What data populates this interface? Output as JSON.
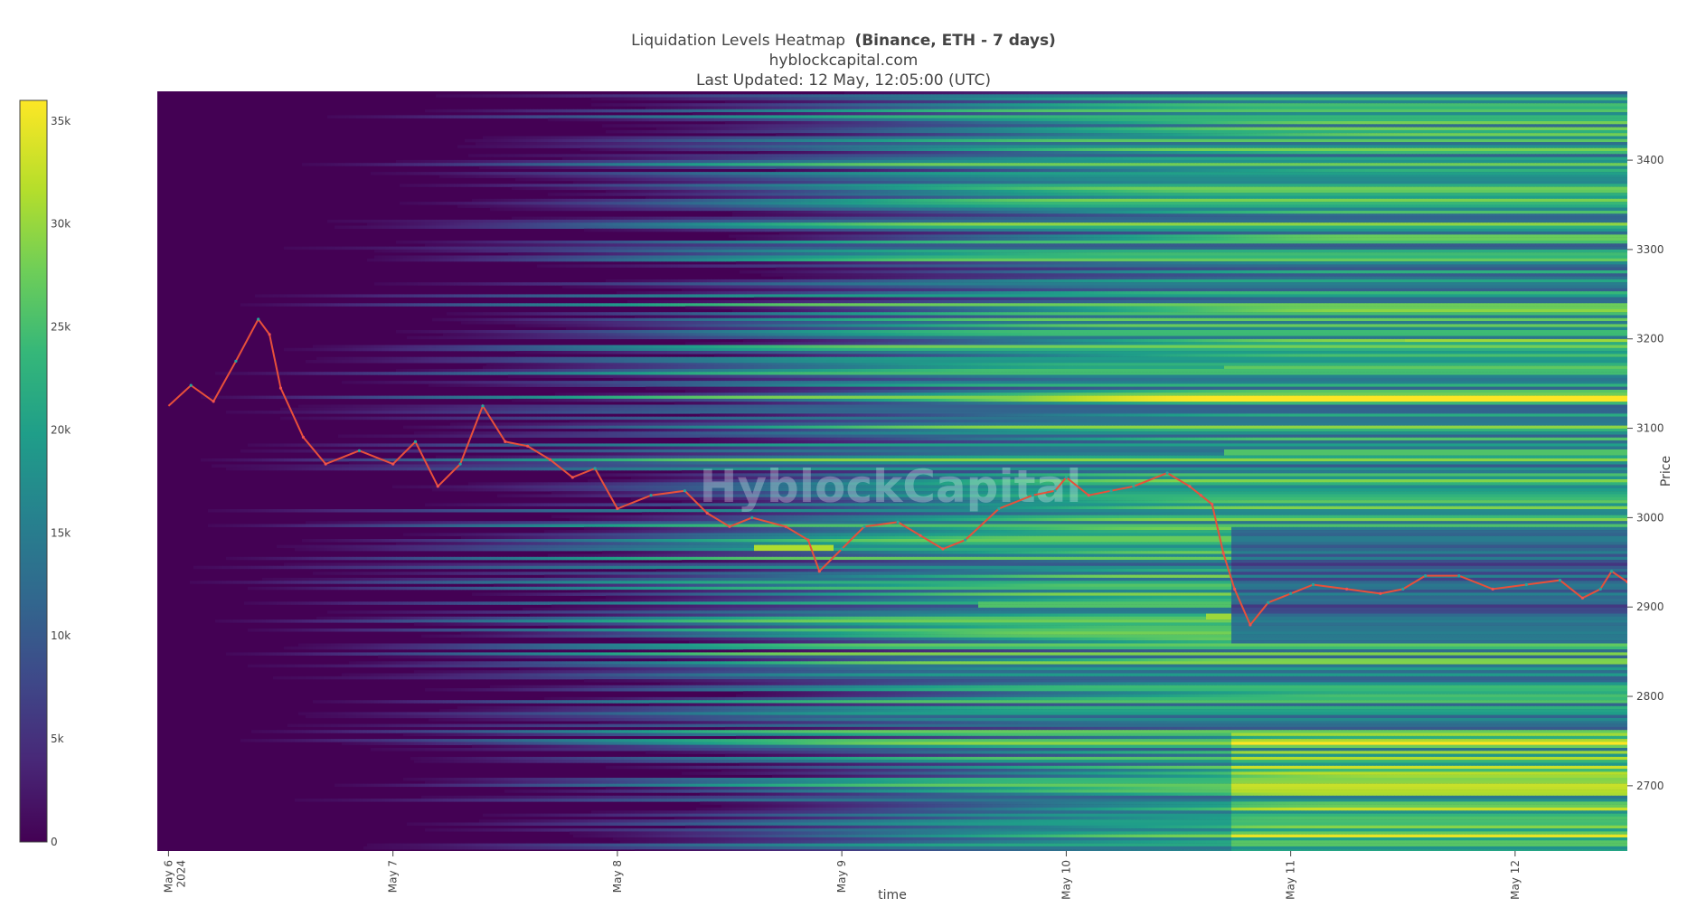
{
  "chart_data": {
    "type": "heatmap",
    "title": "Liquidation Levels Heatmap",
    "title_bold": "(Binance, ETH - 7 days)",
    "subtitle": "hyblockcapital.com",
    "updated": "Last Updated: 12 May, 12:05:00 (UTC)",
    "watermark": "HyblockCapital",
    "xlabel": "time",
    "ylabel": "Price",
    "x_range_days": [
      -0.05,
      6.5
    ],
    "ylim": [
      2627,
      3477
    ],
    "x_ticks": [
      {
        "day": 0,
        "label": "May 6",
        "label2": "2024"
      },
      {
        "day": 1,
        "label": "May 7"
      },
      {
        "day": 2,
        "label": "May 8"
      },
      {
        "day": 3,
        "label": "May 9"
      },
      {
        "day": 4,
        "label": "May 10"
      },
      {
        "day": 5,
        "label": "May 11"
      },
      {
        "day": 6,
        "label": "May 12"
      }
    ],
    "y_ticks": [
      "2700",
      "2800",
      "2900",
      "3000",
      "3100",
      "3200",
      "3300",
      "3400"
    ],
    "colorbar": {
      "min": 0,
      "max": 36000,
      "ticks": [
        "0",
        "5k",
        "10k",
        "15k",
        "20k",
        "25k",
        "30k",
        "35k"
      ],
      "tick_values": [
        0,
        5000,
        10000,
        15000,
        20000,
        25000,
        30000,
        35000
      ],
      "colors": [
        "#440154",
        "#482878",
        "#3e4989",
        "#31688e",
        "#26828e",
        "#1f9e89",
        "#35b779",
        "#6ece58",
        "#b5de2b",
        "#fde725"
      ]
    },
    "price_series": [
      {
        "day": 0.0,
        "price": 3125
      },
      {
        "day": 0.1,
        "price": 3148
      },
      {
        "day": 0.2,
        "price": 3130
      },
      {
        "day": 0.3,
        "price": 3175
      },
      {
        "day": 0.4,
        "price": 3222
      },
      {
        "day": 0.45,
        "price": 3205
      },
      {
        "day": 0.5,
        "price": 3145
      },
      {
        "day": 0.6,
        "price": 3090
      },
      {
        "day": 0.7,
        "price": 3060
      },
      {
        "day": 0.85,
        "price": 3075
      },
      {
        "day": 1.0,
        "price": 3060
      },
      {
        "day": 1.1,
        "price": 3085
      },
      {
        "day": 1.2,
        "price": 3035
      },
      {
        "day": 1.3,
        "price": 3060
      },
      {
        "day": 1.4,
        "price": 3125
      },
      {
        "day": 1.5,
        "price": 3085
      },
      {
        "day": 1.6,
        "price": 3080
      },
      {
        "day": 1.7,
        "price": 3065
      },
      {
        "day": 1.8,
        "price": 3045
      },
      {
        "day": 1.9,
        "price": 3055
      },
      {
        "day": 2.0,
        "price": 3010
      },
      {
        "day": 2.15,
        "price": 3025
      },
      {
        "day": 2.3,
        "price": 3030
      },
      {
        "day": 2.4,
        "price": 3005
      },
      {
        "day": 2.5,
        "price": 2990
      },
      {
        "day": 2.6,
        "price": 3000
      },
      {
        "day": 2.75,
        "price": 2990
      },
      {
        "day": 2.85,
        "price": 2975
      },
      {
        "day": 2.9,
        "price": 2940
      },
      {
        "day": 3.0,
        "price": 2965
      },
      {
        "day": 3.1,
        "price": 2990
      },
      {
        "day": 3.25,
        "price": 2995
      },
      {
        "day": 3.35,
        "price": 2980
      },
      {
        "day": 3.45,
        "price": 2965
      },
      {
        "day": 3.55,
        "price": 2975
      },
      {
        "day": 3.7,
        "price": 3010
      },
      {
        "day": 3.85,
        "price": 3025
      },
      {
        "day": 3.95,
        "price": 3030
      },
      {
        "day": 4.0,
        "price": 3045
      },
      {
        "day": 4.1,
        "price": 3025
      },
      {
        "day": 4.2,
        "price": 3030
      },
      {
        "day": 4.3,
        "price": 3035
      },
      {
        "day": 4.45,
        "price": 3050
      },
      {
        "day": 4.55,
        "price": 3035
      },
      {
        "day": 4.6,
        "price": 3025
      },
      {
        "day": 4.65,
        "price": 3015
      },
      {
        "day": 4.7,
        "price": 2960
      },
      {
        "day": 4.75,
        "price": 2920
      },
      {
        "day": 4.82,
        "price": 2880
      },
      {
        "day": 4.9,
        "price": 2905
      },
      {
        "day": 5.0,
        "price": 2915
      },
      {
        "day": 5.1,
        "price": 2925
      },
      {
        "day": 5.25,
        "price": 2920
      },
      {
        "day": 5.4,
        "price": 2915
      },
      {
        "day": 5.5,
        "price": 2920
      },
      {
        "day": 5.6,
        "price": 2935
      },
      {
        "day": 5.75,
        "price": 2935
      },
      {
        "day": 5.9,
        "price": 2920
      },
      {
        "day": 6.05,
        "price": 2925
      },
      {
        "day": 6.2,
        "price": 2930
      },
      {
        "day": 6.3,
        "price": 2910
      },
      {
        "day": 6.38,
        "price": 2920
      },
      {
        "day": 6.43,
        "price": 2940
      },
      {
        "day": 6.5,
        "price": 2928
      }
    ]
  }
}
